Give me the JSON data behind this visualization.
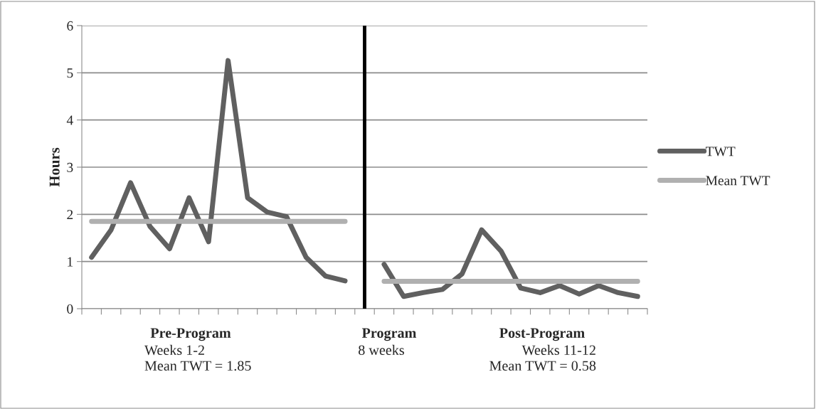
{
  "chart_data": {
    "type": "line",
    "ylabel": "Hours",
    "categories": [
      null,
      null,
      null,
      null,
      null,
      null,
      null,
      null,
      null,
      null,
      null,
      null,
      null,
      null,
      null,
      null,
      null,
      null,
      null,
      null,
      null,
      null,
      null,
      null,
      null,
      null,
      null,
      null,
      null
    ],
    "series": [
      {
        "name": "TWT",
        "color": "#606060",
        "values": [
          1.09,
          1.67,
          2.67,
          1.74,
          1.27,
          2.35,
          1.42,
          5.26,
          2.35,
          2.05,
          1.95,
          1.09,
          0.69,
          0.59,
          null,
          0.94,
          0.26,
          0.34,
          0.41,
          0.74,
          1.67,
          1.22,
          0.44,
          0.34,
          0.49,
          0.31,
          0.49,
          0.34,
          0.26
        ]
      },
      {
        "name": "Mean TWT",
        "color": "#b0b0b0",
        "values": [
          1.85,
          1.85,
          1.85,
          1.85,
          1.85,
          1.85,
          1.85,
          1.85,
          1.85,
          1.85,
          1.85,
          1.85,
          1.85,
          1.85,
          null,
          0.58,
          0.58,
          0.58,
          0.58,
          0.58,
          0.58,
          0.58,
          0.58,
          0.58,
          0.58,
          0.58,
          0.58,
          0.58,
          0.58
        ]
      }
    ],
    "ylim": [
      0,
      6
    ],
    "yticks": [
      0,
      1,
      2,
      3,
      4,
      5,
      6
    ],
    "grid": "y",
    "legend": "right",
    "marker": "none",
    "line_style": "solid",
    "annotations": [
      "Pre-Program",
      "Weeks 1-2",
      "Mean TWT = 1.85",
      "Program",
      "8 weeks",
      "Post-Program",
      "Weeks 11-12",
      "Mean TWT = 0.58"
    ]
  }
}
